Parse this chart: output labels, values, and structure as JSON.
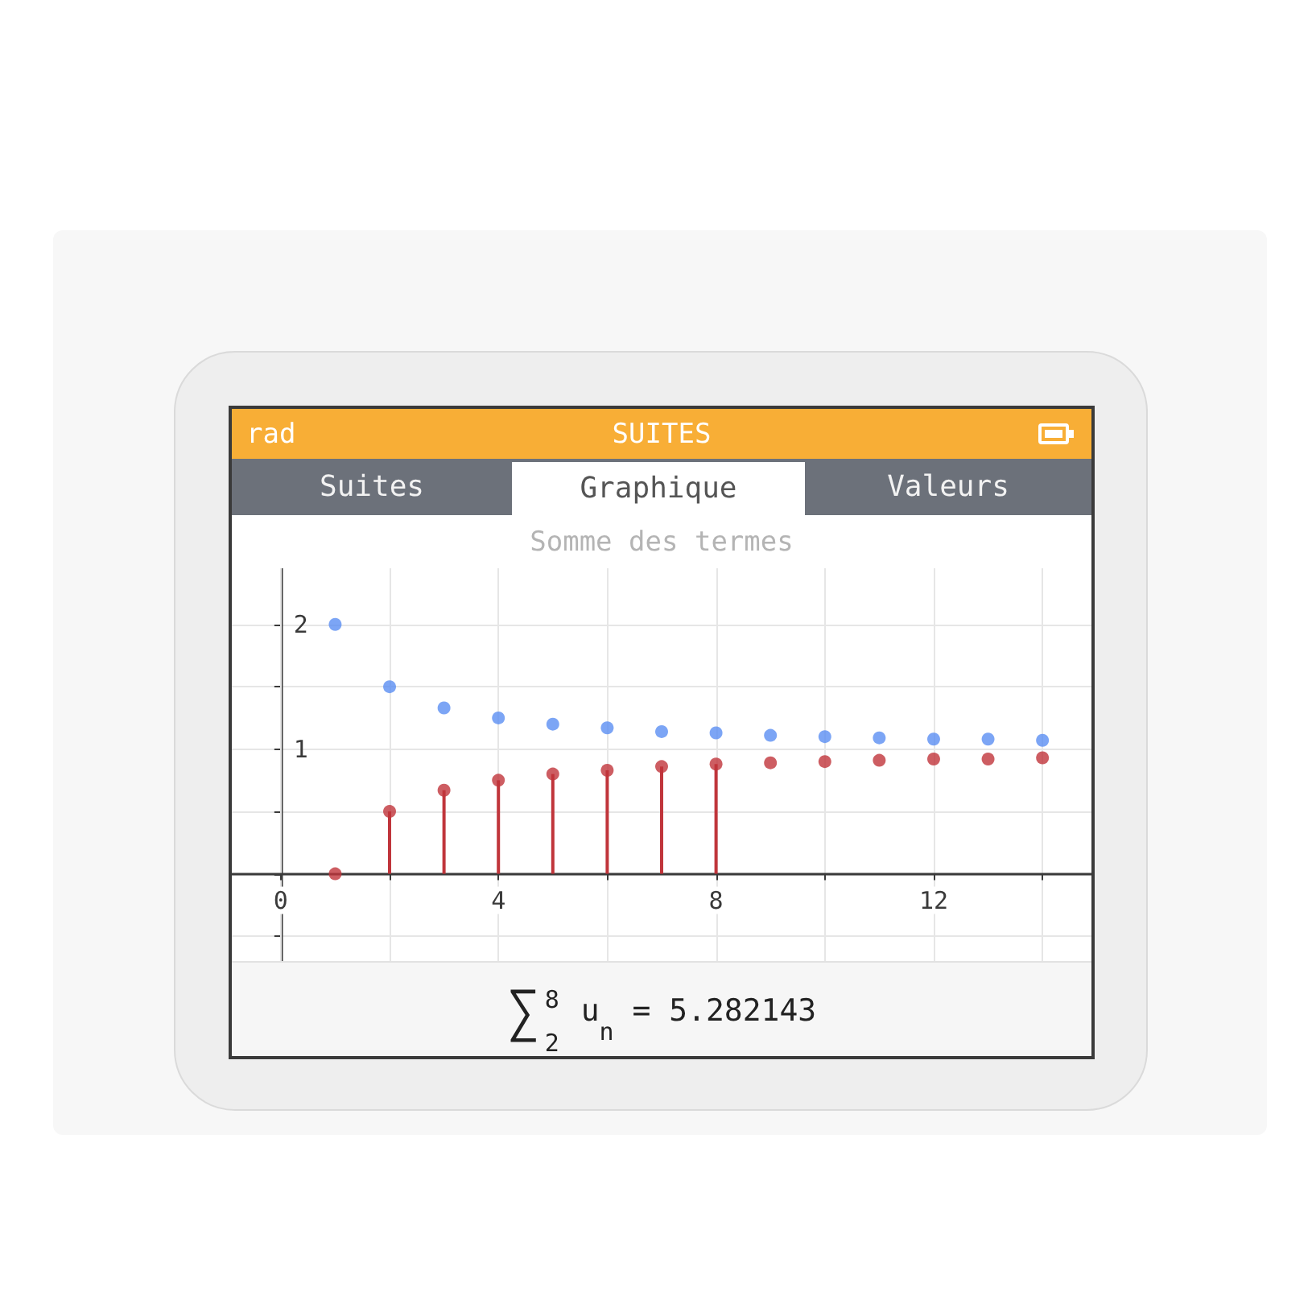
{
  "chart_data": {
    "type": "scatter",
    "title": "Somme des termes",
    "annotations": [
      "rad",
      "SUITES",
      "Suites",
      "Graphique",
      "Valeurs",
      "∑$^{8}$$_{2}$ u$_{n}$ = 5.282143"
    ],
    "series": [
      {
        "color": "#5b8ef2",
        "x": [
          1,
          2,
          3,
          4,
          5,
          6,
          7,
          8,
          9,
          10,
          11,
          12,
          13,
          14
        ],
        "values": [
          2,
          1.5,
          1.33,
          1.25,
          1.2,
          1.17,
          1.14,
          1.13,
          1.11,
          1.1,
          1.09,
          1.08,
          1.08,
          1.07
        ]
      },
      {
        "type": "scatter",
        "color": "#c0353b",
        "x": [
          1,
          9,
          10,
          11,
          12,
          13,
          14
        ],
        "values": [
          0,
          0.89,
          0.9,
          0.91,
          0.92,
          0.92,
          0.93
        ]
      },
      {
        "type": "lollipop",
        "color": "#c0353b",
        "x": [
          2,
          3,
          4,
          5,
          6,
          7,
          8
        ],
        "values": [
          0.5,
          0.67,
          0.75,
          0.8,
          0.83,
          0.86,
          0.88
        ]
      }
    ],
    "xlim": [
      -0.9,
      14.9
    ],
    "ylim": [
      -0.7,
      2.45
    ],
    "xticks": [
      0,
      {
        "value": 2,
        "label": null
      },
      4,
      {
        "value": 6,
        "label": null
      },
      8,
      {
        "value": 10,
        "label": null
      },
      12,
      {
        "value": 14,
        "label": null
      }
    ],
    "yticks": [
      {
        "value": -0.5,
        "label": null
      },
      {
        "value": 0,
        "label": null
      },
      {
        "value": 0.5,
        "label": null
      },
      1,
      {
        "value": 1.5,
        "label": null
      },
      2
    ],
    "grid": true,
    "marker": "circle"
  }
}
